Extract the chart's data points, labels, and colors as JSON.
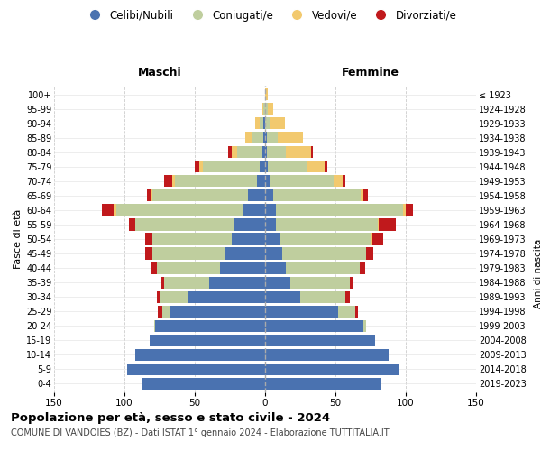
{
  "age_groups": [
    "0-4",
    "5-9",
    "10-14",
    "15-19",
    "20-24",
    "25-29",
    "30-34",
    "35-39",
    "40-44",
    "45-49",
    "50-54",
    "55-59",
    "60-64",
    "65-69",
    "70-74",
    "75-79",
    "80-84",
    "85-89",
    "90-94",
    "95-99",
    "100+"
  ],
  "birth_years": [
    "2019-2023",
    "2014-2018",
    "2009-2013",
    "2004-2008",
    "1999-2003",
    "1994-1998",
    "1989-1993",
    "1984-1988",
    "1979-1983",
    "1974-1978",
    "1969-1973",
    "1964-1968",
    "1959-1963",
    "1954-1958",
    "1949-1953",
    "1944-1948",
    "1939-1943",
    "1934-1938",
    "1929-1933",
    "1924-1928",
    "≤ 1923"
  ],
  "males": {
    "celibi": [
      88,
      98,
      92,
      82,
      78,
      68,
      55,
      40,
      32,
      28,
      24,
      22,
      16,
      12,
      6,
      4,
      2,
      1,
      1,
      0,
      0
    ],
    "coniugati": [
      0,
      0,
      0,
      0,
      1,
      5,
      20,
      32,
      45,
      52,
      56,
      70,
      90,
      68,
      58,
      40,
      18,
      8,
      3,
      1,
      0
    ],
    "vedovi": [
      0,
      0,
      0,
      0,
      0,
      0,
      0,
      0,
      0,
      0,
      0,
      0,
      2,
      1,
      2,
      3,
      4,
      5,
      3,
      1,
      0
    ],
    "divorziati": [
      0,
      0,
      0,
      0,
      0,
      3,
      2,
      2,
      4,
      5,
      5,
      5,
      8,
      3,
      6,
      3,
      2,
      0,
      0,
      0,
      0
    ]
  },
  "females": {
    "nubili": [
      82,
      95,
      88,
      78,
      70,
      52,
      25,
      18,
      15,
      12,
      10,
      8,
      8,
      6,
      4,
      2,
      1,
      1,
      0,
      0,
      0
    ],
    "coniugate": [
      0,
      0,
      0,
      0,
      2,
      12,
      32,
      42,
      52,
      60,
      65,
      72,
      90,
      62,
      45,
      28,
      14,
      8,
      4,
      2,
      0
    ],
    "vedove": [
      0,
      0,
      0,
      0,
      0,
      0,
      0,
      0,
      0,
      0,
      1,
      1,
      2,
      2,
      6,
      12,
      18,
      18,
      10,
      4,
      2
    ],
    "divorziate": [
      0,
      0,
      0,
      0,
      0,
      2,
      3,
      2,
      4,
      5,
      8,
      12,
      5,
      3,
      2,
      2,
      1,
      0,
      0,
      0,
      0
    ]
  },
  "colors": {
    "celibi_nubili": "#4A72B0",
    "coniugati": "#BFCE9E",
    "vedovi": "#F2C96E",
    "divorziati": "#C0191C"
  },
  "xlim": 150,
  "title": "Popolazione per età, sesso e stato civile - 2024",
  "subtitle": "COMUNE DI VANDOIES (BZ) - Dati ISTAT 1° gennaio 2024 - Elaborazione TUTTITALIA.IT",
  "xlabel_left": "Maschi",
  "xlabel_right": "Femmine",
  "ylabel": "Fasce di età",
  "ylabel_right": "Anni di nascita",
  "legend_labels": [
    "Celibi/Nubili",
    "Coniugati/e",
    "Vedovi/e",
    "Divorziati/e"
  ],
  "bg_color": "#FFFFFF",
  "grid_color": "#CCCCCC"
}
